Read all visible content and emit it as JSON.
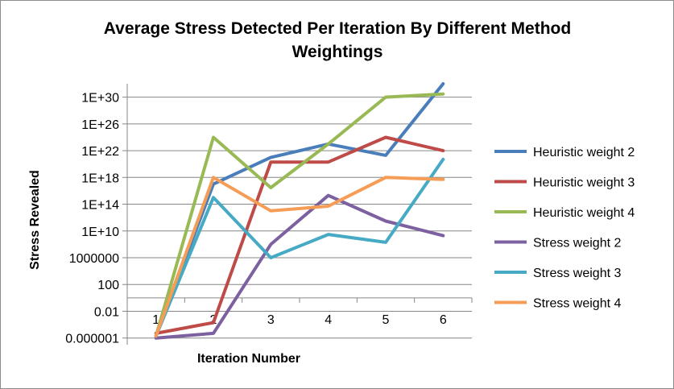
{
  "chart_data": {
    "type": "line",
    "title_lines": [
      "Average Stress Detected Per Iteration By Different Method",
      "Weightings"
    ],
    "xlabel": "Iteration Number",
    "ylabel": "Stress Revealed",
    "y_scale": "log",
    "ylim": [
      1e-07,
      1e+32
    ],
    "y_ticks": [
      1e-06,
      0.01,
      100,
      1000000,
      10000000000.0,
      100000000000000.0,
      1e+18,
      1e+22,
      1e+26,
      1e+30
    ],
    "y_tick_labels": [
      "0.000001",
      "0.01",
      "100",
      "1000000",
      "1E+10",
      "1E+14",
      "1E+18",
      "1E+22",
      "1E+26",
      "1E+30"
    ],
    "x_crosses_at": 1,
    "categories": [
      "1",
      "2",
      "3",
      "4",
      "5",
      "6"
    ],
    "grid": true,
    "legend_position": "right",
    "series": [
      {
        "name": "Heuristic weight 2",
        "color": "#4a7ebb",
        "values": [
          2e-06,
          1e+17,
          1e+21,
          1e+23,
          2e+21,
          1e+32
        ]
      },
      {
        "name": "Heuristic weight 3",
        "color": "#be4b48",
        "values": [
          5e-06,
          0.0002,
          2e+20,
          2e+20,
          1e+24,
          1e+22
        ]
      },
      {
        "name": "Heuristic weight 4",
        "color": "#98b954",
        "values": [
          2e-06,
          1e+24,
          3e+16,
          1e+23,
          1e+30,
          3e+30
        ]
      },
      {
        "name": "Stress weight 2",
        "color": "#7d60a0",
        "values": [
          1e-06,
          5e-06,
          100000000.0,
          2000000000000000.0,
          300000000000.0,
          2000000000.0
        ]
      },
      {
        "name": "Stress weight 3",
        "color": "#46aac5",
        "values": [
          2e-06,
          1000000000000000.0,
          1000000.0,
          3000000000.0,
          200000000.0,
          5e+20
        ]
      },
      {
        "name": "Stress weight 4",
        "color": "#f59d56",
        "values": [
          2e-06,
          1e+18,
          10000000000000.0,
          50000000000000.0,
          1e+18,
          5e+17
        ]
      }
    ]
  }
}
